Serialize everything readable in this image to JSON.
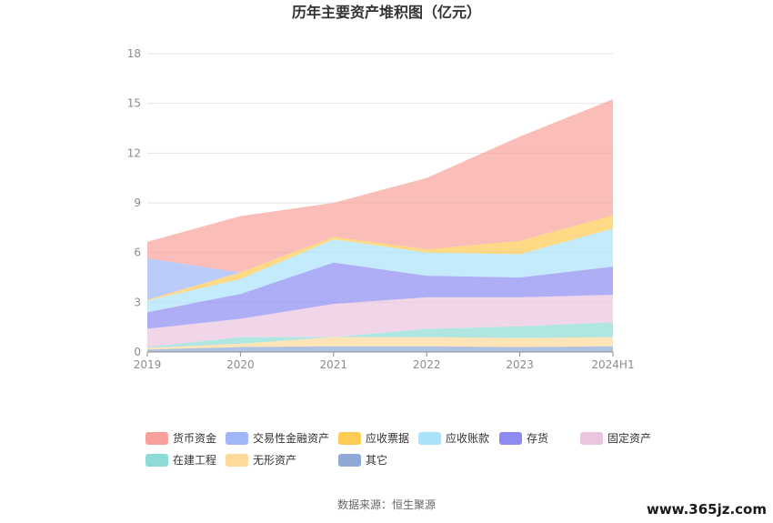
{
  "chart_data": {
    "type": "area",
    "title": "历年主要资产堆积图（亿元）",
    "categories": [
      "2019",
      "2020",
      "2021",
      "2022",
      "2023",
      "2024H1"
    ],
    "ylim": [
      0,
      18
    ],
    "yticks": [
      "0",
      "3",
      "6",
      "9",
      "12",
      "15",
      "18"
    ],
    "grid": true,
    "legend_position": "bottom",
    "series": [
      {
        "name": "其它",
        "color": "#8fa8d6",
        "values": [
          0.15,
          0.3,
          0.35,
          0.35,
          0.3,
          0.35
        ]
      },
      {
        "name": "无形资产",
        "color": "#ffd998",
        "values": [
          0.1,
          0.2,
          0.55,
          0.55,
          0.55,
          0.55
        ]
      },
      {
        "name": "在建工程",
        "color": "#8ddbd6",
        "values": [
          0.05,
          0.4,
          0.0,
          0.5,
          0.7,
          0.9
        ]
      },
      {
        "name": "固定资产",
        "color": "#ebc4df",
        "values": [
          1.1,
          1.1,
          2.0,
          1.9,
          1.75,
          1.65
        ]
      },
      {
        "name": "存货",
        "color": "#8c8bf2",
        "values": [
          1.0,
          1.5,
          2.5,
          1.3,
          1.2,
          1.7
        ]
      },
      {
        "name": "应收账款",
        "color": "#abe2fb",
        "values": [
          0.7,
          0.9,
          1.4,
          1.4,
          1.4,
          2.3
        ]
      },
      {
        "name": "应收票据",
        "color": "#fecb54",
        "values": [
          0.05,
          0.4,
          0.15,
          0.2,
          0.8,
          0.8
        ]
      },
      {
        "name": "交易性金融资产",
        "color": "#9fb7f8",
        "values": [
          2.5,
          0.0,
          0.0,
          0.0,
          0.0,
          0.0
        ]
      },
      {
        "name": "货币资金",
        "color": "#f8a19a",
        "values": [
          1.0,
          3.4,
          2.05,
          4.3,
          6.3,
          7.0
        ]
      }
    ]
  },
  "legend_order": [
    "货币资金",
    "交易性金融资产",
    "应收票据",
    "应收账款",
    "存货",
    "固定资产",
    "在建工程",
    "无形资产",
    "其它"
  ],
  "source": "数据来源：恒生聚源",
  "watermark": "www.365jz.com"
}
